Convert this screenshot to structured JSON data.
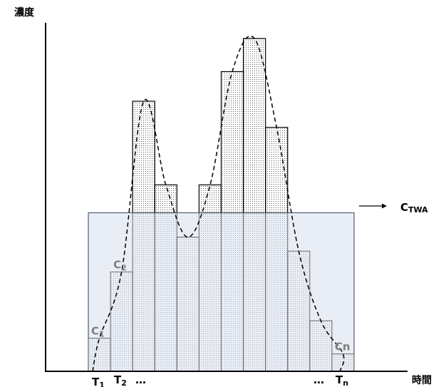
{
  "chart_data": {
    "type": "bar",
    "title": "",
    "ylabel": "濃度",
    "xlabel": "時間",
    "values": [
      0.095,
      0.285,
      0.775,
      0.535,
      0.385,
      0.535,
      0.86,
      0.955,
      0.7,
      0.345,
      0.145,
      0.05
    ],
    "ylim": [
      0,
      1
    ],
    "twa_level": 0.455,
    "twa_label_main": "C",
    "twa_label_sub": "TWA",
    "bar_labels": [
      {
        "index": 0,
        "main": "C",
        "sub": "1"
      },
      {
        "index": 1,
        "main": "C",
        "sub": "2"
      },
      {
        "index": 11,
        "main": "Cn",
        "sub": ""
      }
    ],
    "time_labels": {
      "t1_main": "T",
      "t1_sub": "1",
      "t2_main": "T",
      "t2_sub": "2",
      "dots_left": "…",
      "dots_right": "…",
      "tn_main": "T",
      "tn_sub": "n"
    },
    "series": [
      {
        "style": "dashed",
        "shape": "concentration curve"
      }
    ],
    "colors": {
      "stipple": "#555555",
      "twa_fill": "#dde3ef",
      "twa_border": "#4f5e73",
      "axis": "#000000",
      "bar_label": "#7f7f7f"
    }
  }
}
